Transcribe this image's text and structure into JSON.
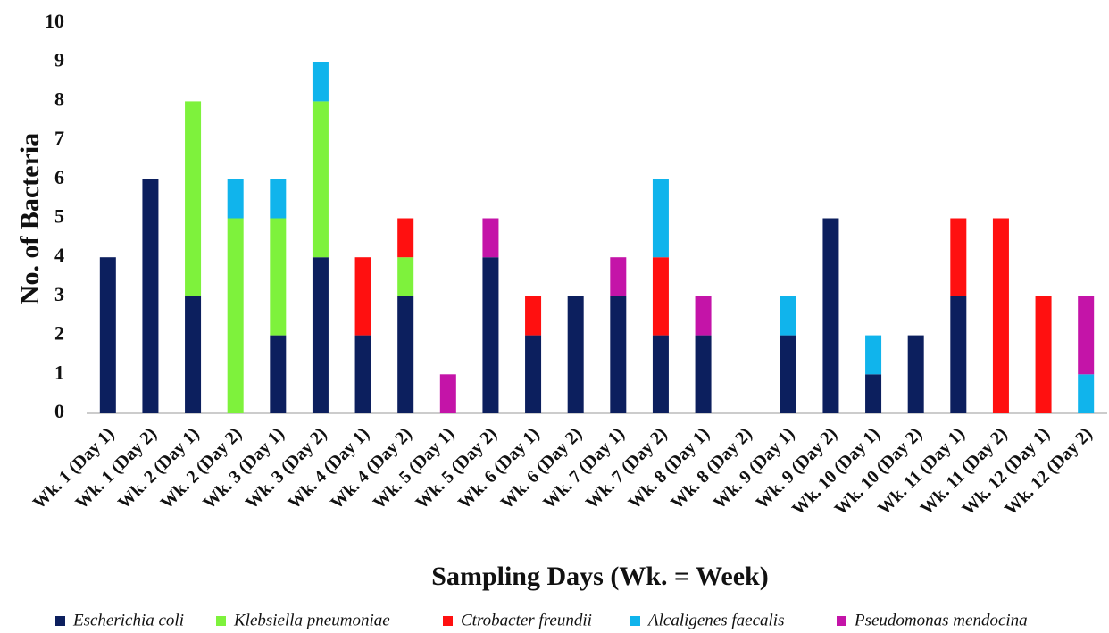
{
  "chart_data": {
    "type": "stacked_bar",
    "y_label": "No. of Bacteria",
    "x_label": "Sampling Days (Wk. = Week)",
    "categories": [
      "Wk. 1 (Day 1)",
      "Wk. 1 (Day 2)",
      "Wk. 2 (Day 1)",
      "Wk. 2 (Day 2)",
      "Wk. 3 (Day 1)",
      "Wk. 3 (Day 2)",
      "Wk. 4 (Day 1)",
      "Wk. 4 (Day 2)",
      "Wk. 5 (Day 1)",
      "Wk. 5 (Day 2)",
      "Wk. 6 (Day 1)",
      "Wk. 6 (Day 2)",
      "Wk. 7 (Day 1)",
      "Wk. 7 (Day 2)",
      "Wk. 8 (Day 1)",
      "Wk. 8 (Day 2)",
      "Wk. 9 (Day 1)",
      "Wk. 9 (Day 2)",
      "Wk. 10 (Day 1)",
      "Wk. 10 (Day 2)",
      "Wk. 11 (Day 1)",
      "Wk. 11 (Day 2)",
      "Wk. 12 (Day 1)",
      "Wk. 12 (Day 2)"
    ],
    "series": [
      {
        "name": "Escherichia coli",
        "color": "#0c1f5e",
        "values": [
          4,
          6,
          3,
          0,
          2,
          4,
          2,
          3,
          0,
          4,
          2,
          3,
          3,
          2,
          2,
          0,
          2,
          5,
          1,
          2,
          3,
          0,
          0,
          0
        ]
      },
      {
        "name": "Klebsiella pneumoniae",
        "color": "#7ef23c",
        "values": [
          0,
          0,
          5,
          5,
          3,
          4,
          0,
          1,
          0,
          0,
          0,
          0,
          0,
          0,
          0,
          0,
          0,
          0,
          0,
          0,
          0,
          0,
          0,
          0
        ]
      },
      {
        "name": "Ctrobacter freundii",
        "color": "#ff1010",
        "values": [
          0,
          0,
          0,
          0,
          0,
          0,
          2,
          1,
          0,
          0,
          1,
          0,
          0,
          2,
          0,
          0,
          0,
          0,
          0,
          0,
          2,
          5,
          3,
          0
        ]
      },
      {
        "name": "Alcaligenes faecalis",
        "color": "#10b4ec",
        "values": [
          0,
          0,
          0,
          1,
          1,
          1,
          0,
          0,
          0,
          0,
          0,
          0,
          0,
          2,
          0,
          0,
          1,
          0,
          1,
          0,
          0,
          0,
          0,
          1
        ]
      },
      {
        "name": "Pseudomonas mendocina",
        "color": "#c414a8",
        "values": [
          0,
          0,
          0,
          0,
          0,
          0,
          0,
          0,
          1,
          1,
          0,
          0,
          1,
          0,
          1,
          0,
          0,
          0,
          0,
          0,
          0,
          0,
          0,
          2
        ]
      }
    ],
    "ylim": [
      0,
      10
    ],
    "yticks": [
      0,
      1,
      2,
      3,
      4,
      5,
      6,
      7,
      8,
      9,
      10
    ]
  }
}
